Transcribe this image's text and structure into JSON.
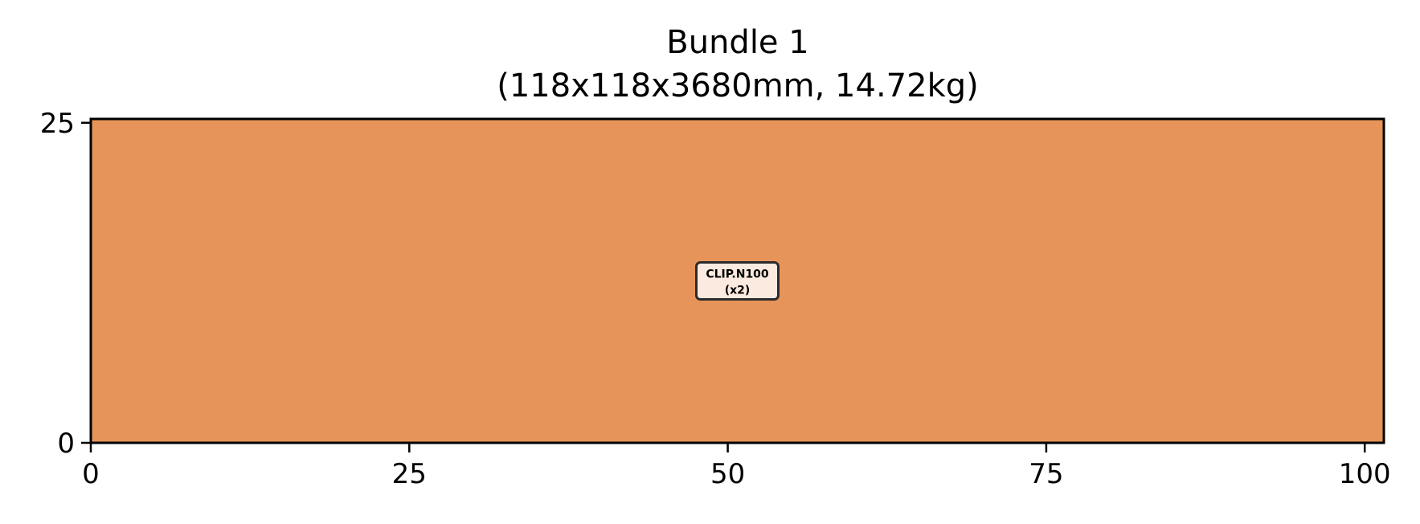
{
  "chart_data": {
    "type": "bar",
    "title": "Bundle 1",
    "subtitle": "(118x118x3680mm, 14.72kg)",
    "xlabel": "",
    "ylabel": "",
    "xlim": [
      0,
      101.5
    ],
    "ylim": [
      0,
      25.3
    ],
    "xticks": [
      0,
      25,
      50,
      75,
      100
    ],
    "yticks": [
      0,
      25
    ],
    "grid": false,
    "colors": {
      "item_fill": "#e69459",
      "label_box_fill": "#faeadf",
      "label_box_stroke": "#2b2b2b",
      "axis": "#000000"
    },
    "items": [
      {
        "label": "CLIP.N100",
        "quantity": "(x2)",
        "x0": 0,
        "x1": 101.5,
        "y0": 0,
        "y1": 25.3
      }
    ]
  }
}
